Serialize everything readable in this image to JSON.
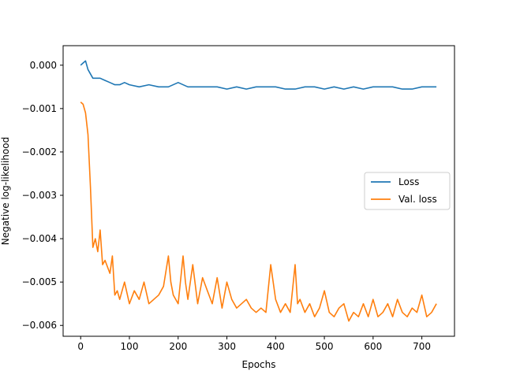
{
  "chart_data": {
    "type": "line",
    "xlabel": "Epochs",
    "ylabel": "Negative log-likelihood",
    "xlim": [
      -36,
      767
    ],
    "ylim": [
      -0.00625,
      0.00045
    ],
    "xticks": [
      0,
      100,
      200,
      300,
      400,
      500,
      600,
      700
    ],
    "xtick_labels": [
      "0",
      "100",
      "200",
      "300",
      "400",
      "500",
      "600",
      "700"
    ],
    "yticks": [
      0.0,
      -0.001,
      -0.002,
      -0.003,
      -0.004,
      -0.005,
      -0.006
    ],
    "ytick_labels": [
      "0.000",
      "−0.001",
      "−0.002",
      "−0.003",
      "−0.004",
      "−0.005",
      "−0.006"
    ],
    "grid": false,
    "legend_position": "center-right",
    "series": [
      {
        "name": "Loss",
        "color": "#1f77b4",
        "x": [
          0,
          5,
          10,
          15,
          20,
          25,
          30,
          40,
          50,
          60,
          70,
          80,
          90,
          100,
          120,
          140,
          160,
          180,
          200,
          220,
          240,
          260,
          280,
          300,
          320,
          340,
          360,
          380,
          400,
          420,
          440,
          460,
          480,
          500,
          520,
          540,
          560,
          580,
          600,
          620,
          640,
          660,
          680,
          700,
          720,
          730
        ],
        "y": [
          0.0,
          5e-05,
          0.0001,
          -0.0001,
          -0.0002,
          -0.0003,
          -0.0003,
          -0.0003,
          -0.00035,
          -0.0004,
          -0.00045,
          -0.00045,
          -0.0004,
          -0.00045,
          -0.0005,
          -0.00045,
          -0.0005,
          -0.0005,
          -0.0004,
          -0.0005,
          -0.0005,
          -0.0005,
          -0.0005,
          -0.00055,
          -0.0005,
          -0.00055,
          -0.0005,
          -0.0005,
          -0.0005,
          -0.00055,
          -0.00055,
          -0.0005,
          -0.0005,
          -0.00055,
          -0.0005,
          -0.00055,
          -0.0005,
          -0.00055,
          -0.0005,
          -0.0005,
          -0.0005,
          -0.00055,
          -0.00055,
          -0.0005,
          -0.0005,
          -0.0005
        ]
      },
      {
        "name": "Val. loss",
        "color": "#ff7f0e",
        "x": [
          0,
          5,
          10,
          15,
          20,
          25,
          30,
          35,
          40,
          45,
          50,
          60,
          65,
          70,
          75,
          80,
          90,
          100,
          110,
          120,
          130,
          140,
          150,
          160,
          170,
          180,
          185,
          190,
          200,
          210,
          215,
          220,
          230,
          240,
          250,
          260,
          270,
          280,
          290,
          300,
          310,
          320,
          330,
          340,
          350,
          360,
          370,
          380,
          390,
          400,
          410,
          420,
          430,
          440,
          445,
          450,
          460,
          470,
          480,
          490,
          500,
          510,
          520,
          530,
          540,
          550,
          560,
          570,
          580,
          590,
          600,
          610,
          620,
          630,
          640,
          650,
          660,
          670,
          680,
          690,
          700,
          710,
          720,
          730
        ],
        "y": [
          -0.00085,
          -0.0009,
          -0.0011,
          -0.0016,
          -0.0028,
          -0.0042,
          -0.004,
          -0.0043,
          -0.0038,
          -0.0046,
          -0.0045,
          -0.0048,
          -0.0044,
          -0.0053,
          -0.0052,
          -0.0054,
          -0.005,
          -0.0055,
          -0.0052,
          -0.0054,
          -0.005,
          -0.0055,
          -0.0054,
          -0.0053,
          -0.0051,
          -0.0044,
          -0.005,
          -0.0053,
          -0.0055,
          -0.0044,
          -0.005,
          -0.0054,
          -0.0046,
          -0.0055,
          -0.0049,
          -0.0052,
          -0.0055,
          -0.0049,
          -0.0056,
          -0.005,
          -0.0054,
          -0.0056,
          -0.0055,
          -0.0054,
          -0.0056,
          -0.0057,
          -0.0056,
          -0.0057,
          -0.0046,
          -0.0054,
          -0.0057,
          -0.0055,
          -0.0057,
          -0.0046,
          -0.0055,
          -0.0054,
          -0.0057,
          -0.0055,
          -0.0058,
          -0.0056,
          -0.0052,
          -0.0057,
          -0.0058,
          -0.0056,
          -0.0055,
          -0.0059,
          -0.0057,
          -0.0058,
          -0.0055,
          -0.0058,
          -0.0054,
          -0.0058,
          -0.0057,
          -0.0055,
          -0.0058,
          -0.0054,
          -0.0057,
          -0.0058,
          -0.0056,
          -0.0057,
          -0.0053,
          -0.0058,
          -0.0057,
          -0.0055
        ]
      }
    ]
  }
}
